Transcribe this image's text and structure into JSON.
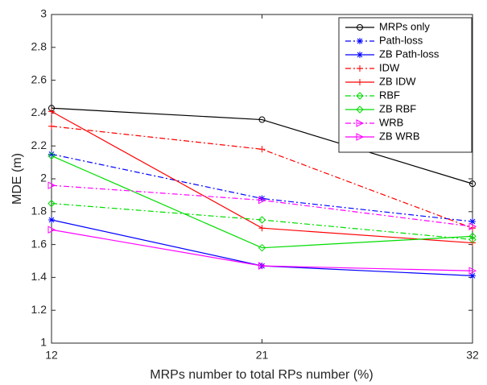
{
  "chart_data": {
    "type": "line",
    "xlabel": "MRPs number to total RPs number (%)",
    "ylabel": "MDE (m)",
    "categories": [
      "12",
      "21",
      "32"
    ],
    "ylim": [
      1,
      3
    ],
    "yticks": [
      1,
      1.2,
      1.4,
      1.6,
      1.8,
      2,
      2.2,
      2.4,
      2.6,
      2.8,
      3
    ],
    "legend": "upper-right",
    "series": [
      {
        "name": "MRPs only",
        "color": "#000000",
        "marker": "circle",
        "dash": "solid",
        "values": [
          2.43,
          2.36,
          1.97
        ]
      },
      {
        "name": "Path-loss",
        "color": "#0000ff",
        "marker": "star",
        "dash": "dashdot",
        "values": [
          2.15,
          1.88,
          1.74
        ]
      },
      {
        "name": "ZB Path-loss",
        "color": "#0000ff",
        "marker": "star",
        "dash": "solid",
        "values": [
          1.75,
          1.47,
          1.41
        ]
      },
      {
        "name": "IDW",
        "color": "#ff0000",
        "marker": "plus",
        "dash": "dashdot",
        "values": [
          2.32,
          2.18,
          1.7
        ]
      },
      {
        "name": "ZB IDW",
        "color": "#ff0000",
        "marker": "plus",
        "dash": "solid",
        "values": [
          2.41,
          1.7,
          1.61
        ]
      },
      {
        "name": "RBF",
        "color": "#00dd00",
        "marker": "diamond",
        "dash": "dashdot",
        "values": [
          1.85,
          1.75,
          1.63
        ]
      },
      {
        "name": "ZB RBF",
        "color": "#00dd00",
        "marker": "diamond",
        "dash": "solid",
        "values": [
          2.14,
          1.58,
          1.65
        ]
      },
      {
        "name": "WRB",
        "color": "#ff00ff",
        "marker": "triangle-right",
        "dash": "dashdot",
        "values": [
          1.96,
          1.87,
          1.71
        ]
      },
      {
        "name": "ZB WRB",
        "color": "#ff00ff",
        "marker": "triangle-right",
        "dash": "solid",
        "values": [
          1.69,
          1.47,
          1.44
        ]
      }
    ]
  }
}
